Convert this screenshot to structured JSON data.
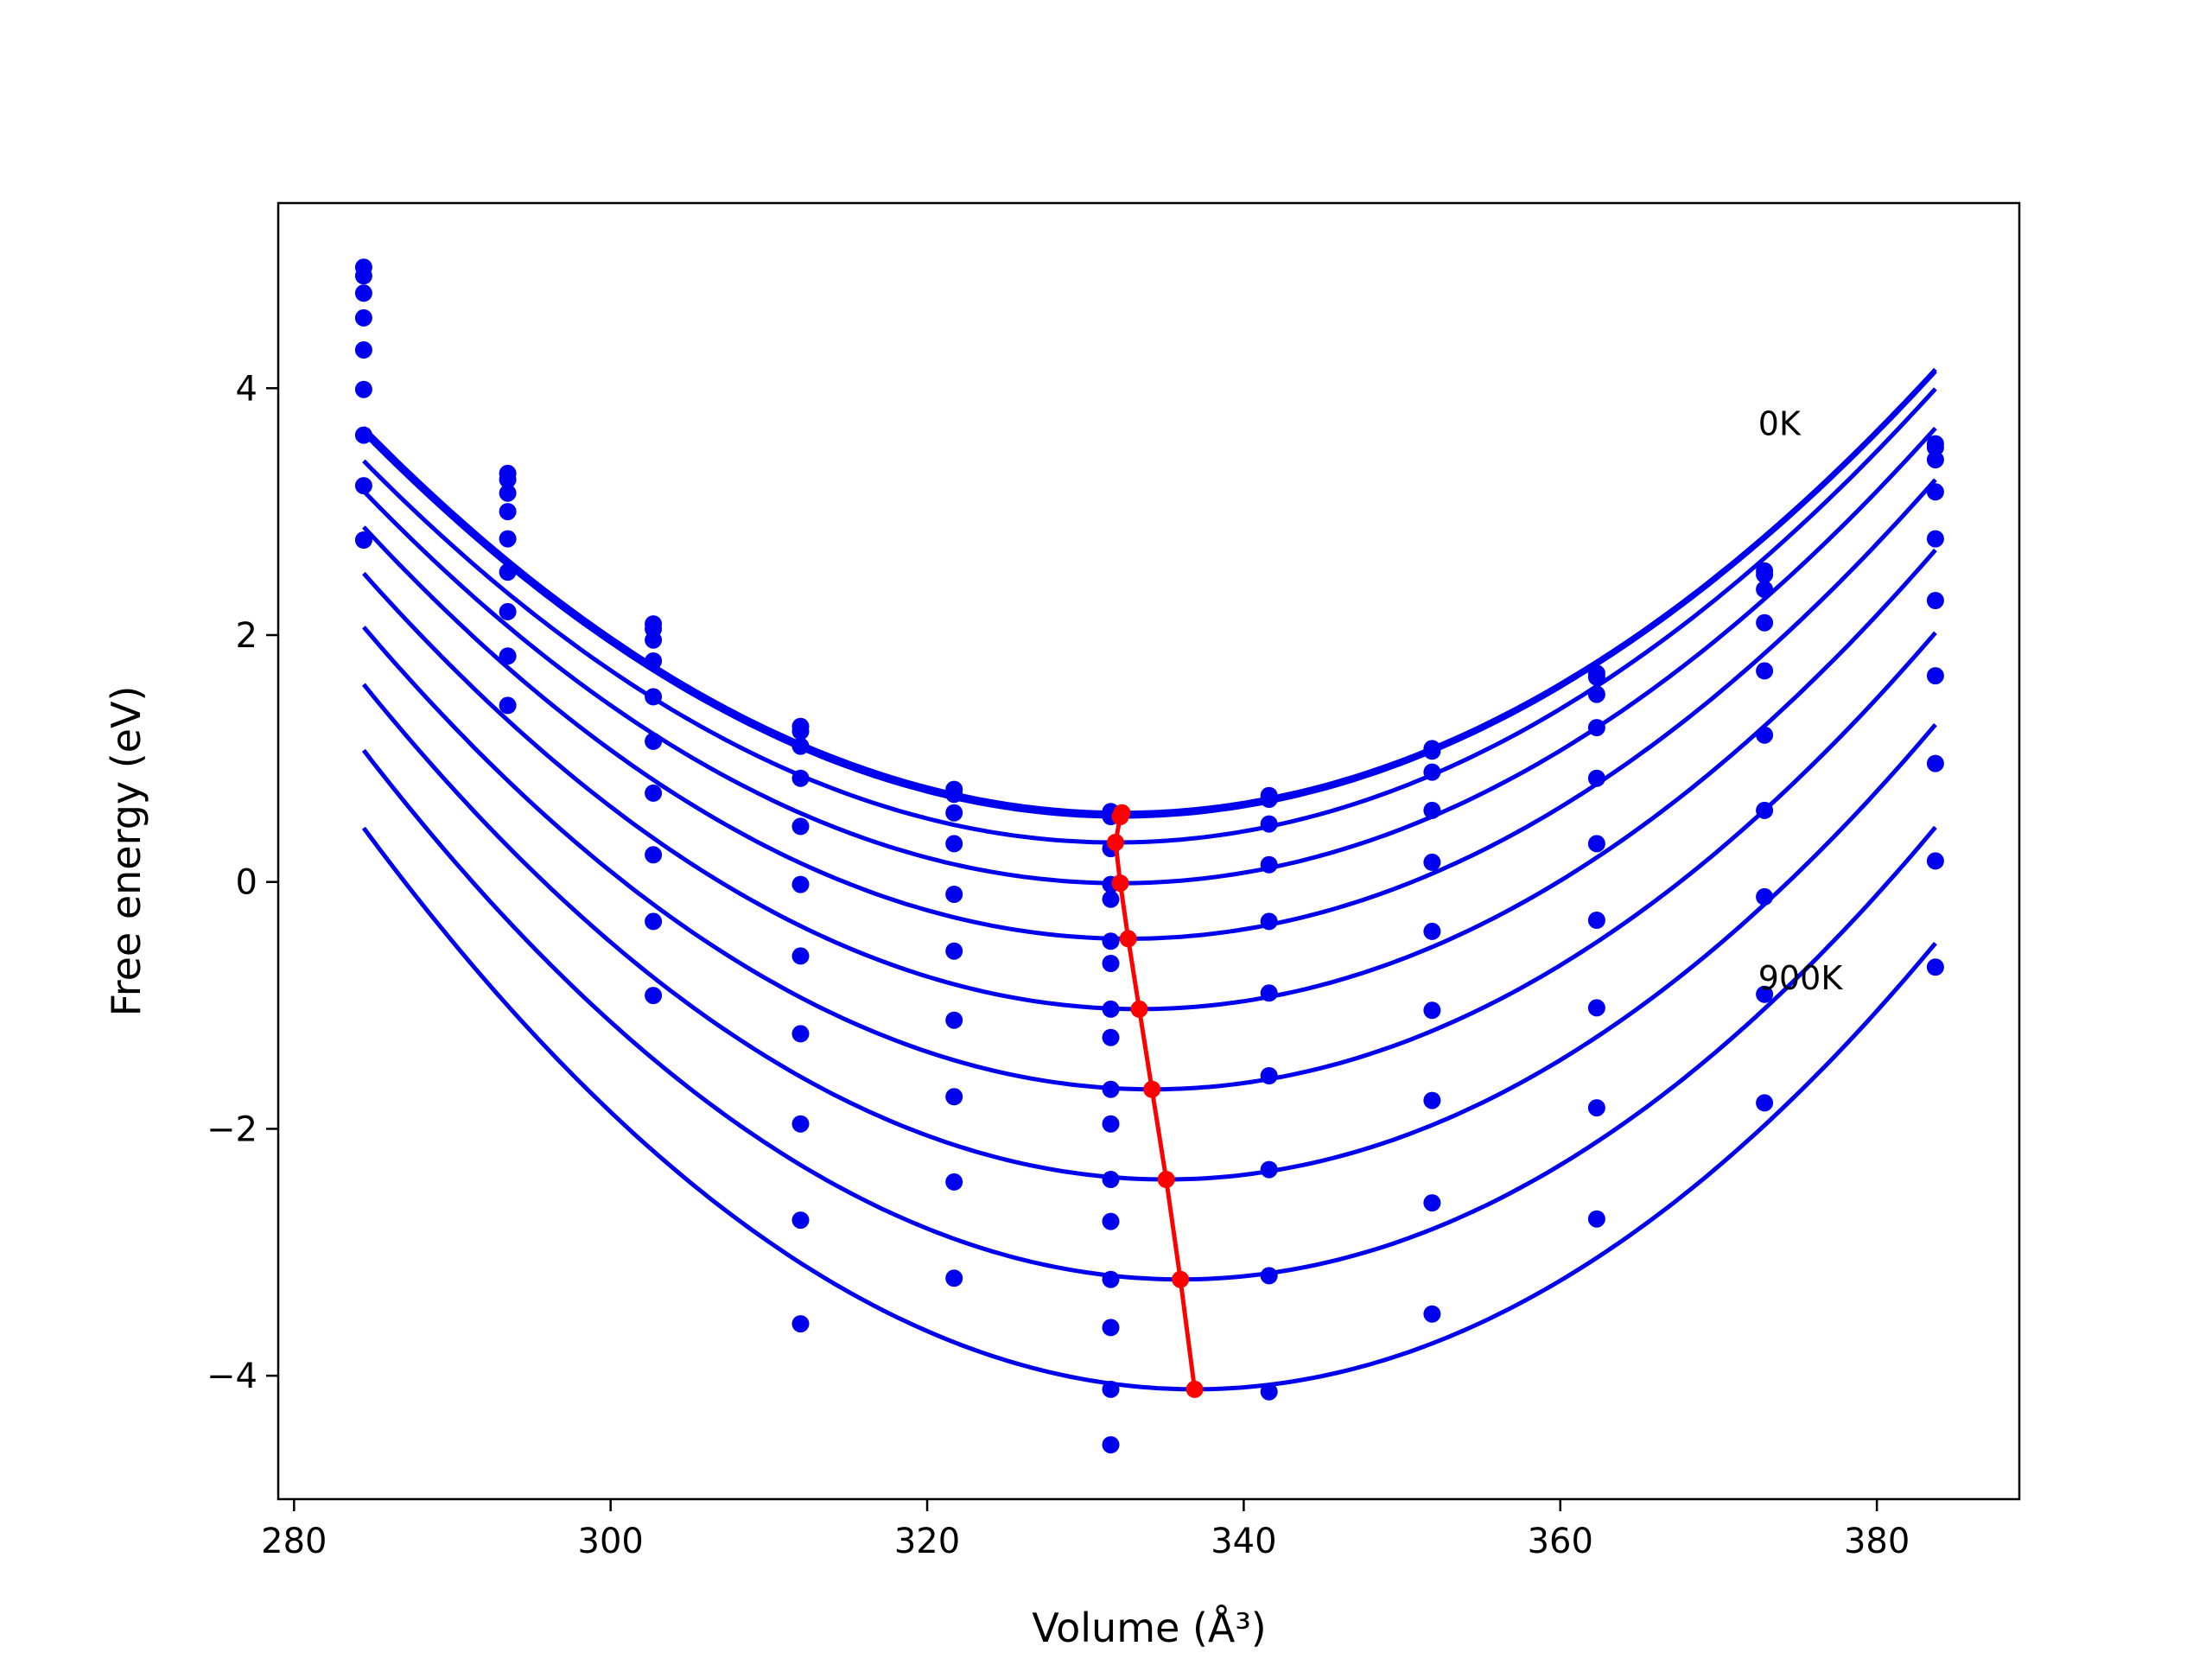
{
  "chart_data": {
    "type": "line",
    "xlabel": "Volume (Å³)",
    "ylabel": "Free energy (eV)",
    "xlim": [
      279,
      389
    ],
    "ylim": [
      -5.0,
      5.5
    ],
    "xticks": [
      280,
      300,
      320,
      340,
      360,
      380
    ],
    "yticks": [
      -4,
      -2,
      0,
      2,
      4
    ],
    "grid": false,
    "colors": {
      "fit": "#0000ee",
      "points": "#0000ee",
      "minima": "#ff0000",
      "axes": "#000000"
    },
    "annotations": [
      {
        "text": "0K",
        "x": 372.5,
        "y": 3.62
      },
      {
        "text": "900K",
        "x": 372.5,
        "y": -0.87
      }
    ],
    "volumes": [
      284.4,
      293.5,
      302.7,
      312.0,
      321.7,
      331.6,
      341.6,
      351.9,
      362.3,
      372.9,
      383.7
    ],
    "series": [
      {
        "fit": {
          "min_v": 332.3,
          "min_f": 0.56,
          "k": 0.00136
        },
        "points": [
          4.98,
          3.31,
          2.09,
          1.26,
          0.75,
          0.57,
          0.7,
          1.08,
          1.69,
          2.52,
          3.55
        ]
      },
      {
        "fit": {
          "min_v": 332.2,
          "min_f": 0.53,
          "k": 0.00136
        },
        "points": [
          4.91,
          3.26,
          2.05,
          1.22,
          0.71,
          0.53,
          0.67,
          1.06,
          1.66,
          2.49,
          3.52
        ]
      },
      {
        "fit": {
          "min_v": 331.9,
          "min_f": 0.32,
          "k": 0.00137
        },
        "points": [
          4.77,
          3.15,
          1.96,
          1.1,
          0.56,
          0.27,
          0.47,
          0.89,
          1.52,
          2.37,
          3.42
        ]
      },
      {
        "fit": {
          "min_v": 332.2,
          "min_f": -0.01,
          "k": 0.00139
        },
        "points": [
          4.57,
          3.0,
          1.79,
          0.84,
          0.31,
          -0.02,
          0.14,
          0.58,
          1.25,
          2.1,
          3.16
        ]
      },
      {
        "fit": {
          "min_v": 332.7,
          "min_f": -0.46,
          "k": 0.00143
        },
        "points": [
          4.31,
          2.78,
          1.5,
          0.45,
          -0.1,
          -0.48,
          -0.32,
          0.16,
          0.84,
          1.71,
          2.78
        ]
      },
      {
        "fit": {
          "min_v": 333.4,
          "min_f": -1.03,
          "k": 0.00147
        },
        "points": [
          3.99,
          2.51,
          1.14,
          -0.02,
          -0.56,
          -1.03,
          -0.9,
          -0.4,
          0.31,
          1.19,
          2.28
        ]
      },
      {
        "fit": {
          "min_v": 334.2,
          "min_f": -1.68,
          "k": 0.00151
        },
        "points": [
          3.62,
          2.19,
          0.72,
          -0.6,
          -1.12,
          -1.68,
          -1.57,
          -1.04,
          -0.31,
          0.58,
          1.67
        ]
      },
      {
        "fit": {
          "min_v": 335.1,
          "min_f": -2.41,
          "k": 0.00156
        },
        "points": [
          3.21,
          1.83,
          0.22,
          -1.23,
          -1.74,
          -2.41,
          -2.33,
          -1.77,
          -1.02,
          -0.12,
          0.96
        ]
      },
      {
        "fit": {
          "min_v": 336.0,
          "min_f": -3.22,
          "k": 0.00161
        },
        "points": [
          2.77,
          1.43,
          -0.32,
          -1.96,
          -2.43,
          -3.22,
          -3.19,
          -2.6,
          -1.83,
          -0.91,
          0.17
        ]
      },
      {
        "fit": {
          "min_v": 336.9,
          "min_f": -4.11,
          "k": 0.00165
        },
        "points": [
          null,
          null,
          -0.92,
          -2.74,
          -3.21,
          -4.11,
          -4.13,
          -3.5,
          -2.73,
          -1.79,
          -0.69
        ]
      }
    ],
    "extra_points": [
      {
        "x": 312.0,
        "y": -3.58
      },
      {
        "x": 331.6,
        "y": -4.56
      },
      {
        "x": 331.6,
        "y": -3.61
      },
      {
        "x": 331.6,
        "y": -2.75
      },
      {
        "x": 331.6,
        "y": -1.96
      },
      {
        "x": 331.6,
        "y": -1.26
      },
      {
        "x": 331.6,
        "y": -0.66
      },
      {
        "x": 331.6,
        "y": -0.14
      }
    ],
    "minima_line": [
      {
        "x": 332.3,
        "y": 0.56
      },
      {
        "x": 332.2,
        "y": 0.53
      },
      {
        "x": 331.9,
        "y": 0.32
      },
      {
        "x": 332.2,
        "y": -0.01
      },
      {
        "x": 332.7,
        "y": -0.46
      },
      {
        "x": 333.4,
        "y": -1.03
      },
      {
        "x": 334.2,
        "y": -1.68
      },
      {
        "x": 335.1,
        "y": -2.41
      },
      {
        "x": 336.0,
        "y": -3.22
      },
      {
        "x": 336.9,
        "y": -4.11
      }
    ]
  }
}
